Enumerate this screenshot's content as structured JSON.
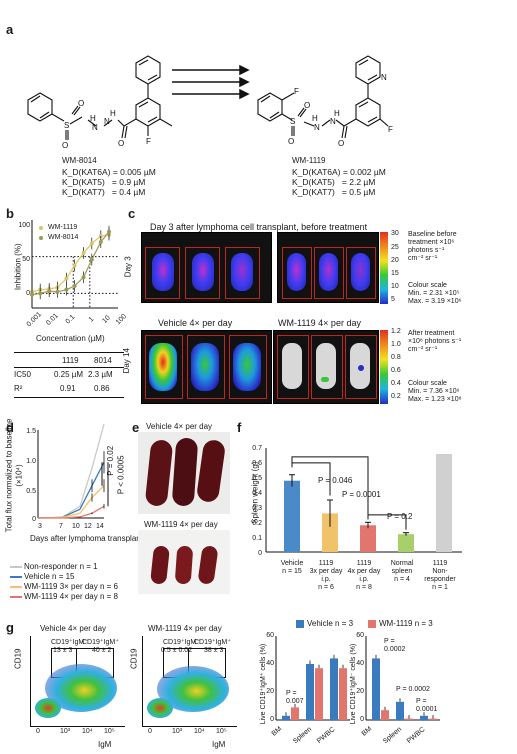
{
  "panel_a": {
    "label": "a",
    "compound1": {
      "name": "WM-8014",
      "rows": [
        "K_D(KAT6A) = 0.005 µM",
        "K_D(KAT5)   = 0.9 µM",
        "K_D(KAT7)   = 0.4 µM"
      ]
    },
    "compound2": {
      "name": "WM-1119",
      "rows": [
        "K_D(KAT6A) = 0.002 µM",
        "K_D(KAT5)   = 2.2 µM",
        "K_D(KAT7)   = 0.5 µM"
      ]
    }
  },
  "panel_b": {
    "label": "b",
    "ylabel": "Inhibition (%)",
    "xlabel": "Concentration (µM)",
    "legend": [
      "WM-1119",
      "WM-8014"
    ],
    "yticks": [
      "100",
      "50",
      "0"
    ],
    "xticks": [
      "0.001",
      "0.01",
      "0.1",
      "1",
      "10",
      "100"
    ],
    "table": {
      "headers": [
        "",
        "1119",
        "8014"
      ],
      "rows": [
        [
          "IC50",
          "0.25 µM",
          "2.3 µM"
        ],
        [
          "R²",
          "0.91",
          "0.86"
        ]
      ]
    }
  },
  "panel_c": {
    "label": "c",
    "top_title": "Day 3 after lymphoma cell transplant, before treatment",
    "row1": "Day 3",
    "row2": "Day 14",
    "vehicle_title": "Vehicle 4× per day",
    "drug_title": "WM-1119 4× per day",
    "scale1": {
      "ticks": [
        "30",
        "25",
        "20",
        "15",
        "10",
        "5"
      ],
      "lines": [
        "Baseline before",
        "treatment ×10⁶",
        "photons s⁻¹",
        "cm⁻² sr⁻¹"
      ],
      "cs": [
        "Colour scale",
        "Min. = 2.31 ×10⁵",
        "Max. = 3.19 ×10⁶"
      ]
    },
    "scale2": {
      "ticks": [
        "1.2",
        "1.0",
        "0.8",
        "0.6",
        "0.4",
        "0.2"
      ],
      "lines": [
        "After treatment",
        "×10⁸ photons s⁻¹",
        "cm⁻² sr⁻¹"
      ],
      "cs": [
        "Colour scale",
        "Min. = 7.36 ×10⁶",
        "Max. = 1.23 ×10⁸"
      ]
    }
  },
  "panel_d": {
    "label": "d",
    "ylabel": "Total flux normalized to baseline (×10⁴)",
    "xlabel": "Days after lymphoma transplant",
    "yticks": [
      "1.5",
      "1.0",
      "0.5",
      "0"
    ],
    "xticks": [
      "3",
      "7",
      "10",
      "12",
      "14"
    ],
    "p1": "P = 0.02",
    "p2": "P < 0.0005",
    "legend": [
      "Non-responder n = 1",
      "Vehicle n = 15",
      "WM-1119 3× per day n = 6",
      "WM-1119 4× per day n = 8"
    ],
    "colors": [
      "#c8c8c8",
      "#3a7abf",
      "#f0c36a",
      "#e2766d"
    ]
  },
  "panel_e": {
    "label": "e",
    "title1": "Vehicle 4× per day",
    "title2": "WM-1119 4× per day"
  },
  "panel_f": {
    "label": "f",
    "ylabel": "Spleen weight (g)",
    "yticks": [
      "0.7",
      "0.6",
      "0.5",
      "0.4",
      "0.3",
      "0.2",
      "0.1",
      "0"
    ],
    "p_values": [
      "P = 0.046",
      "P = 0.0001",
      "P = 0.2"
    ],
    "categories": [
      [
        "Vehicle",
        "n = 15"
      ],
      [
        "1119",
        "3x per day",
        "i.p.",
        "n = 6"
      ],
      [
        "1119",
        "4x per day",
        "i.p.",
        "n = 8"
      ],
      [
        "Normal",
        "spleen",
        "n = 4"
      ],
      [
        "1119",
        "Non-",
        "responder",
        "n = 1"
      ]
    ]
  },
  "panel_g": {
    "label": "g",
    "plot1_title": "Vehicle 4× per day",
    "plot2_title": "WM-1119 4× per day",
    "gate_labels1": [
      "CD19⁺IgM⁻",
      "13 ± 3",
      "CD19⁺IgM⁺",
      "40 ± 2"
    ],
    "gate_labels2": [
      "CD19⁺IgM⁻",
      "0.5 ± 0.02",
      "CD19⁺IgM⁺",
      "38 ± 3"
    ],
    "ylabel": "CD19",
    "xlabel": "IgM",
    "ticks": [
      "0",
      "10³",
      "10⁴",
      "10⁵"
    ],
    "legend": [
      "Vehicle n = 3",
      "WM-1119 n = 3"
    ],
    "legend_colors": [
      "#3a7abf",
      "#e2766d"
    ],
    "bar1_ylabel": "Live CD19⁺IgM⁺ cells (%)",
    "bar2_ylabel": "Live CD19⁺IgM⁻ cells (%)",
    "bar1_yticks": [
      "60",
      "40",
      "20",
      "0"
    ],
    "bar2_yticks": [
      "60",
      "40",
      "20",
      "0"
    ],
    "bar_categories": [
      "BM",
      "Spleen",
      "PWBC"
    ],
    "bar1_p": [
      "P =",
      "0.007"
    ],
    "bar2_p": [
      "P =",
      "0.0002",
      "P = 0.0002",
      "P =",
      "0.0001"
    ]
  },
  "chart_data": [
    {
      "type": "line",
      "title": "",
      "xlabel": "Concentration (µM)",
      "ylabel": "Inhibition (%)",
      "xscale": "log",
      "series": [
        {
          "name": "WM-1119",
          "x": [
            0.001,
            0.003,
            0.01,
            0.03,
            0.1,
            0.3,
            1,
            3,
            10,
            30
          ],
          "values": [
            2,
            5,
            6,
            8,
            20,
            38,
            55,
            68,
            78,
            80
          ]
        },
        {
          "name": "WM-8014",
          "x": [
            0.001,
            0.003,
            0.01,
            0.03,
            0.1,
            0.3,
            1,
            3,
            10,
            30
          ],
          "values": [
            -2,
            0,
            3,
            2,
            5,
            10,
            22,
            46,
            70,
            84
          ]
        }
      ],
      "ylim": [
        -20,
        100
      ]
    },
    {
      "type": "line",
      "xlabel": "Days after lymphoma transplant",
      "ylabel": "Total flux normalized to baseline (×10⁴)",
      "x": [
        3,
        7,
        10,
        12,
        14
      ],
      "series": [
        {
          "name": "Non-responder n = 1",
          "values": [
            0,
            0.01,
            0.2,
            0.85,
            1.6
          ]
        },
        {
          "name": "Vehicle n = 15",
          "values": [
            0,
            0.01,
            0.15,
            0.55,
            0.95
          ]
        },
        {
          "name": "WM-1119 3× per day n = 6",
          "values": [
            0,
            0.01,
            0.08,
            0.35,
            0.55
          ]
        },
        {
          "name": "WM-1119 4× per day n = 8",
          "values": [
            0,
            0.0,
            0.02,
            0.08,
            0.2
          ]
        }
      ],
      "ylim": [
        0,
        1.5
      ]
    },
    {
      "type": "bar",
      "ylabel": "Spleen weight (g)",
      "categories": [
        "Vehicle",
        "1119 3x per day",
        "1119 4x per day",
        "Normal spleen",
        "1119 Non-responder"
      ],
      "values": [
        0.48,
        0.26,
        0.18,
        0.12,
        0.66
      ],
      "errors": [
        0.04,
        0.09,
        0.02,
        0.01,
        0
      ],
      "ylim": [
        0,
        0.7
      ]
    },
    {
      "type": "bar",
      "ylabel": "Live CD19⁺IgM⁺ cells (%)",
      "categories": [
        "BM",
        "Spleen",
        "PWBC"
      ],
      "series": [
        {
          "name": "Vehicle n = 3",
          "values": [
            3,
            40,
            44
          ]
        },
        {
          "name": "WM-1119 n = 3",
          "values": [
            9,
            37,
            37
          ]
        }
      ],
      "ylim": [
        0,
        60
      ]
    },
    {
      "type": "bar",
      "ylabel": "Live CD19⁺IgM⁻ cells (%)",
      "categories": [
        "BM",
        "Spleen",
        "PWBC"
      ],
      "series": [
        {
          "name": "Vehicle n = 3",
          "values": [
            44,
            13,
            3
          ]
        },
        {
          "name": "WM-1119 n = 3",
          "values": [
            7,
            1,
            1
          ]
        }
      ],
      "ylim": [
        0,
        60
      ]
    }
  ]
}
